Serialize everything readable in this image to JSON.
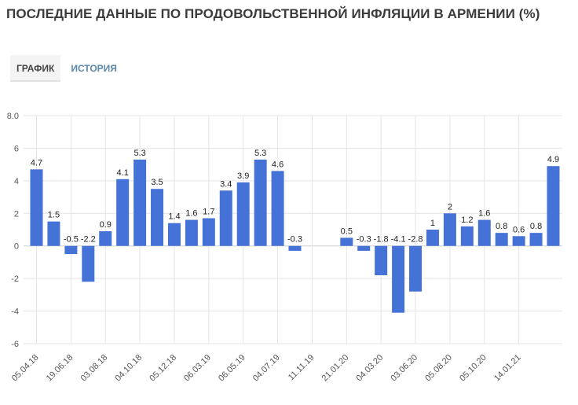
{
  "page_title": "ПОСЛЕДНИЕ ДАННЫЕ ПО ПРОДОВОЛЬСТВЕННОЙ ИНФЛЯЦИИ В АРМЕНИИ (%)",
  "tabs": [
    {
      "label": "ГРАФИК",
      "active": true
    },
    {
      "label": "ИСТОРИЯ",
      "active": false
    }
  ],
  "colors": {
    "bar": "#4472d6",
    "tab_inactive": "#5b87a8",
    "grid": "#e4e4e4"
  },
  "chart_data": {
    "type": "bar",
    "title": "",
    "xlabel": "",
    "ylabel": "",
    "ylim": [
      -6,
      8
    ],
    "yticks": [
      "8.0",
      "6",
      "4",
      "2",
      "0",
      "-2",
      "-4",
      "-6"
    ],
    "grid": true,
    "x_tick_labels": [
      "05.04.18",
      "19.06.18",
      "03.08.18",
      "04.10.18",
      "05.12.18",
      "06.03.19",
      "06.05.19",
      "04.07.19",
      "11.11.19",
      "21.01.20",
      "04.03.20",
      "03.06.20",
      "05.08.20",
      "05.10.20",
      "14.01.21"
    ],
    "values": [
      4.7,
      1.5,
      -0.5,
      -2.2,
      0.9,
      4.1,
      5.3,
      3.5,
      1.4,
      1.6,
      1.7,
      3.4,
      3.9,
      5.3,
      4.6,
      -0.3,
      null,
      null,
      0.5,
      -0.3,
      -1.8,
      -4.1,
      -2.8,
      1,
      2,
      1.2,
      1.6,
      0.8,
      0.6,
      0.8,
      4.9
    ],
    "labels": [
      "4.7",
      "1.5",
      "-0.5",
      "-2.2",
      "0.9",
      "4.1",
      "5.3",
      "3.5",
      "1.4",
      "1.6",
      "1.7",
      "3.4",
      "3.9",
      "5.3",
      "4.6",
      "-0.3",
      "",
      "",
      "0.5",
      "-0.3",
      "-1.8",
      "-4.1",
      "-2.8",
      "1",
      "2",
      "1.2",
      "1.6",
      "0.8",
      "0.6",
      "0.8",
      "4.9"
    ]
  }
}
